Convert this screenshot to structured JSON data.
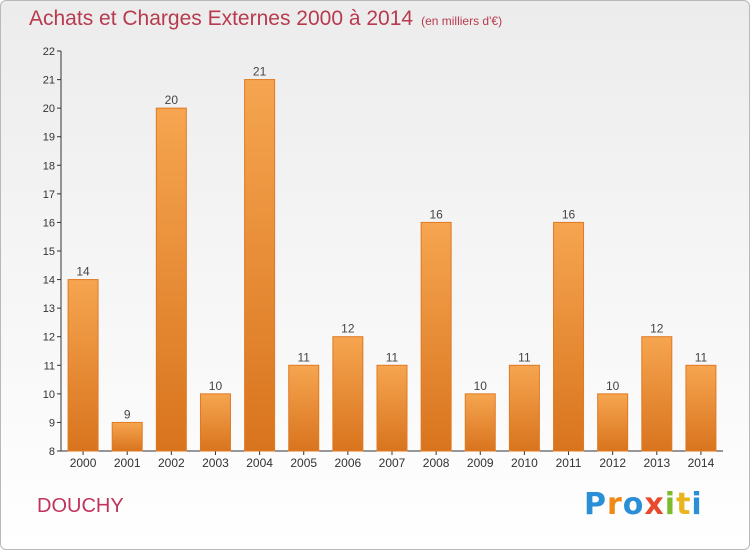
{
  "chart_data": {
    "type": "bar",
    "title": "Achats et Charges Externes 2000 à 2014",
    "unit_label": "(en milliers d'€)",
    "categories": [
      "2000",
      "2001",
      "2002",
      "2003",
      "2004",
      "2005",
      "2006",
      "2007",
      "2008",
      "2009",
      "2010",
      "2011",
      "2012",
      "2013",
      "2014"
    ],
    "values": [
      14,
      9,
      20,
      10,
      21,
      11,
      12,
      11,
      16,
      10,
      11,
      16,
      10,
      12,
      11
    ],
    "ylim": [
      8,
      22
    ],
    "yticks": [
      8,
      9,
      10,
      11,
      12,
      13,
      14,
      15,
      16,
      17,
      18,
      19,
      20,
      21,
      22
    ],
    "grid": false,
    "bar_color_top": "#f6a550",
    "bar_color_bottom": "#d9741e",
    "bar_edge_color": "#e07a22"
  },
  "footer": {
    "town": "DOUCHY",
    "logo_text": "Proxiti",
    "logo_colors": [
      "#2a8fd6",
      "#f08a17",
      "#2a8fd6",
      "#e84b2b",
      "#7cbb2b",
      "#e8b51d",
      "#2a8fd6"
    ]
  },
  "colors": {
    "title": "#b83a4e",
    "town": "#c0345c",
    "axis": "#333333"
  }
}
